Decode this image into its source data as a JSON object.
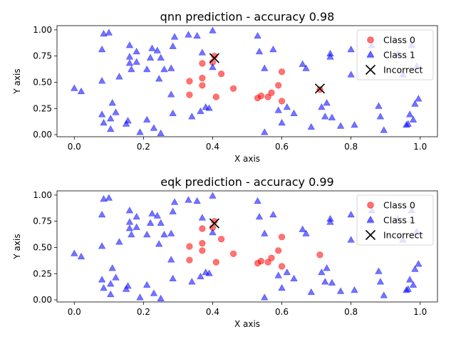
{
  "colors": {
    "class0": "#ff0000",
    "class1": "#0000ff",
    "incorrect": "#000000"
  },
  "chart_data": [
    {
      "type": "scatter",
      "title": "qnn prediction - accuracy 0.98",
      "xlabel": "X axis",
      "ylabel": "Y axis",
      "xlim": [
        -0.05,
        1.05
      ],
      "ylim": [
        -0.02,
        1.04
      ],
      "xticks": [
        0.0,
        0.2,
        0.4,
        0.6,
        0.8,
        1.0
      ],
      "xtick_labels": [
        "0.0",
        "0.2",
        "0.4",
        "0.6",
        "0.8",
        "1.0"
      ],
      "yticks": [
        0.0,
        0.25,
        0.5,
        0.75,
        1.0
      ],
      "ytick_labels": [
        "0.00",
        "0.25",
        "0.50",
        "0.75",
        "1.00"
      ],
      "legend_position": "top-right",
      "series": [
        {
          "name": "Class 0",
          "marker": "circle",
          "color": "#ff0000",
          "points": [
            [
              0.333,
              0.51
            ],
            [
              0.333,
              0.38
            ],
            [
              0.37,
              0.68
            ],
            [
              0.37,
              0.54
            ],
            [
              0.37,
              0.47
            ],
            [
              0.4,
              0.69
            ],
            [
              0.405,
              0.75
            ],
            [
              0.41,
              0.36
            ],
            [
              0.425,
              0.58
            ],
            [
              0.46,
              0.44
            ],
            [
              0.53,
              0.35
            ],
            [
              0.54,
              0.37
            ],
            [
              0.56,
              0.36
            ],
            [
              0.57,
              0.4
            ],
            [
              0.59,
              0.47
            ],
            [
              0.6,
              0.32
            ],
            [
              0.6,
              0.6
            ],
            [
              0.71,
              0.43
            ]
          ]
        },
        {
          "name": "Class 1",
          "marker": "triangle",
          "color": "#0000ff",
          "points": [
            [
              0.0,
              0.44
            ],
            [
              0.02,
              0.41
            ],
            [
              0.08,
              0.81
            ],
            [
              0.08,
              0.51
            ],
            [
              0.08,
              0.19
            ],
            [
              0.085,
              0.96
            ],
            [
              0.085,
              0.11
            ],
            [
              0.1,
              0.97
            ],
            [
              0.105,
              0.05
            ],
            [
              0.105,
              0.15
            ],
            [
              0.11,
              0.3
            ],
            [
              0.12,
              0.21
            ],
            [
              0.13,
              0.55
            ],
            [
              0.15,
              0.1
            ],
            [
              0.155,
              0.13
            ],
            [
              0.16,
              0.85
            ],
            [
              0.16,
              0.74
            ],
            [
              0.16,
              0.68
            ],
            [
              0.165,
              0.62
            ],
            [
              0.18,
              0.79
            ],
            [
              0.18,
              0.69
            ],
            [
              0.19,
              0.02
            ],
            [
              0.21,
              0.14
            ],
            [
              0.21,
              0.62
            ],
            [
              0.22,
              0.73
            ],
            [
              0.225,
              0.82
            ],
            [
              0.23,
              0.06
            ],
            [
              0.24,
              0.8
            ],
            [
              0.245,
              0.53
            ],
            [
              0.25,
              0.01
            ],
            [
              0.25,
              0.73
            ],
            [
              0.26,
              0.62
            ],
            [
              0.28,
              0.63
            ],
            [
              0.28,
              0.38
            ],
            [
              0.285,
              0.84
            ],
            [
              0.285,
              0.2
            ],
            [
              0.29,
              0.93
            ],
            [
              0.33,
              0.95
            ],
            [
              0.34,
              0.17
            ],
            [
              0.355,
              0.94
            ],
            [
              0.365,
              0.22
            ],
            [
              0.37,
              0.78
            ],
            [
              0.38,
              0.26
            ],
            [
              0.39,
              0.25
            ],
            [
              0.4,
              0.99
            ],
            [
              0.4,
              0.64
            ],
            [
              0.53,
              0.94
            ],
            [
              0.535,
              0.79
            ],
            [
              0.55,
              0.02
            ],
            [
              0.55,
              0.63
            ],
            [
              0.575,
              0.81
            ],
            [
              0.59,
              0.23
            ],
            [
              0.6,
              0.11
            ],
            [
              0.615,
              0.26
            ],
            [
              0.635,
              0.2
            ],
            [
              0.66,
              0.67
            ],
            [
              0.67,
              0.63
            ],
            [
              0.685,
              0.07
            ],
            [
              0.715,
              0.26
            ],
            [
              0.725,
              0.17
            ],
            [
              0.73,
              0.3
            ],
            [
              0.74,
              0.74
            ],
            [
              0.74,
              0.77
            ],
            [
              0.745,
              0.16
            ],
            [
              0.77,
              0.08
            ],
            [
              0.8,
              0.57
            ],
            [
              0.8,
              0.81
            ],
            [
              0.81,
              0.09
            ],
            [
              0.855,
              0.75
            ],
            [
              0.86,
              0.85
            ],
            [
              0.88,
              0.27
            ],
            [
              0.885,
              0.17
            ],
            [
              0.895,
              0.04
            ],
            [
              0.935,
              0.77
            ],
            [
              0.95,
              0.57
            ],
            [
              0.96,
              0.09
            ],
            [
              0.965,
              0.1
            ],
            [
              0.97,
              0.19
            ],
            [
              0.975,
              0.85
            ],
            [
              0.98,
              0.14
            ],
            [
              0.985,
              0.29
            ],
            [
              0.99,
              0.65
            ],
            [
              0.995,
              0.34
            ]
          ]
        },
        {
          "name": "Incorrect",
          "marker": "x",
          "color": "#000000",
          "points": [
            [
              0.405,
              0.73
            ],
            [
              0.71,
              0.44
            ]
          ]
        }
      ]
    },
    {
      "type": "scatter",
      "title": "eqk prediction - accuracy 0.99",
      "xlabel": "X axis",
      "ylabel": "Y axis",
      "xlim": [
        -0.05,
        1.05
      ],
      "ylim": [
        -0.02,
        1.04
      ],
      "xticks": [
        0.0,
        0.2,
        0.4,
        0.6,
        0.8,
        1.0
      ],
      "xtick_labels": [
        "0.0",
        "0.2",
        "0.4",
        "0.6",
        "0.8",
        "1.0"
      ],
      "yticks": [
        0.0,
        0.25,
        0.5,
        0.75,
        1.0
      ],
      "ytick_labels": [
        "0.00",
        "0.25",
        "0.50",
        "0.75",
        "1.00"
      ],
      "legend_position": "top-right",
      "series": [
        {
          "name": "Class 0",
          "marker": "circle",
          "color": "#ff0000",
          "points": [
            [
              0.333,
              0.51
            ],
            [
              0.333,
              0.38
            ],
            [
              0.37,
              0.68
            ],
            [
              0.37,
              0.54
            ],
            [
              0.37,
              0.47
            ],
            [
              0.4,
              0.69
            ],
            [
              0.405,
              0.75
            ],
            [
              0.41,
              0.36
            ],
            [
              0.425,
              0.58
            ],
            [
              0.46,
              0.44
            ],
            [
              0.53,
              0.35
            ],
            [
              0.54,
              0.37
            ],
            [
              0.56,
              0.36
            ],
            [
              0.57,
              0.4
            ],
            [
              0.59,
              0.47
            ],
            [
              0.6,
              0.32
            ],
            [
              0.6,
              0.6
            ],
            [
              0.71,
              0.43
            ]
          ]
        },
        {
          "name": "Class 1",
          "marker": "triangle",
          "color": "#0000ff",
          "points": [
            [
              0.0,
              0.44
            ],
            [
              0.02,
              0.41
            ],
            [
              0.08,
              0.81
            ],
            [
              0.08,
              0.51
            ],
            [
              0.08,
              0.19
            ],
            [
              0.085,
              0.96
            ],
            [
              0.085,
              0.11
            ],
            [
              0.1,
              0.97
            ],
            [
              0.105,
              0.05
            ],
            [
              0.105,
              0.15
            ],
            [
              0.11,
              0.3
            ],
            [
              0.12,
              0.21
            ],
            [
              0.13,
              0.55
            ],
            [
              0.15,
              0.1
            ],
            [
              0.155,
              0.13
            ],
            [
              0.16,
              0.85
            ],
            [
              0.16,
              0.74
            ],
            [
              0.16,
              0.68
            ],
            [
              0.165,
              0.62
            ],
            [
              0.18,
              0.79
            ],
            [
              0.18,
              0.69
            ],
            [
              0.19,
              0.02
            ],
            [
              0.21,
              0.14
            ],
            [
              0.21,
              0.62
            ],
            [
              0.22,
              0.73
            ],
            [
              0.225,
              0.82
            ],
            [
              0.23,
              0.06
            ],
            [
              0.24,
              0.8
            ],
            [
              0.245,
              0.53
            ],
            [
              0.25,
              0.01
            ],
            [
              0.25,
              0.73
            ],
            [
              0.26,
              0.62
            ],
            [
              0.28,
              0.63
            ],
            [
              0.28,
              0.38
            ],
            [
              0.285,
              0.84
            ],
            [
              0.285,
              0.2
            ],
            [
              0.29,
              0.93
            ],
            [
              0.33,
              0.95
            ],
            [
              0.34,
              0.17
            ],
            [
              0.355,
              0.94
            ],
            [
              0.365,
              0.22
            ],
            [
              0.37,
              0.78
            ],
            [
              0.38,
              0.26
            ],
            [
              0.39,
              0.25
            ],
            [
              0.4,
              0.99
            ],
            [
              0.4,
              0.64
            ],
            [
              0.53,
              0.94
            ],
            [
              0.535,
              0.79
            ],
            [
              0.55,
              0.02
            ],
            [
              0.55,
              0.63
            ],
            [
              0.575,
              0.81
            ],
            [
              0.59,
              0.23
            ],
            [
              0.6,
              0.11
            ],
            [
              0.615,
              0.26
            ],
            [
              0.635,
              0.2
            ],
            [
              0.66,
              0.67
            ],
            [
              0.67,
              0.63
            ],
            [
              0.685,
              0.07
            ],
            [
              0.715,
              0.26
            ],
            [
              0.725,
              0.17
            ],
            [
              0.73,
              0.3
            ],
            [
              0.74,
              0.74
            ],
            [
              0.74,
              0.77
            ],
            [
              0.745,
              0.16
            ],
            [
              0.77,
              0.08
            ],
            [
              0.8,
              0.57
            ],
            [
              0.8,
              0.81
            ],
            [
              0.81,
              0.09
            ],
            [
              0.855,
              0.75
            ],
            [
              0.86,
              0.85
            ],
            [
              0.88,
              0.27
            ],
            [
              0.885,
              0.17
            ],
            [
              0.895,
              0.04
            ],
            [
              0.935,
              0.77
            ],
            [
              0.95,
              0.57
            ],
            [
              0.96,
              0.09
            ],
            [
              0.965,
              0.1
            ],
            [
              0.97,
              0.19
            ],
            [
              0.975,
              0.85
            ],
            [
              0.98,
              0.14
            ],
            [
              0.985,
              0.29
            ],
            [
              0.99,
              0.65
            ],
            [
              0.995,
              0.34
            ]
          ]
        },
        {
          "name": "Incorrect",
          "marker": "x",
          "color": "#000000",
          "points": [
            [
              0.405,
              0.73
            ]
          ]
        }
      ]
    }
  ]
}
